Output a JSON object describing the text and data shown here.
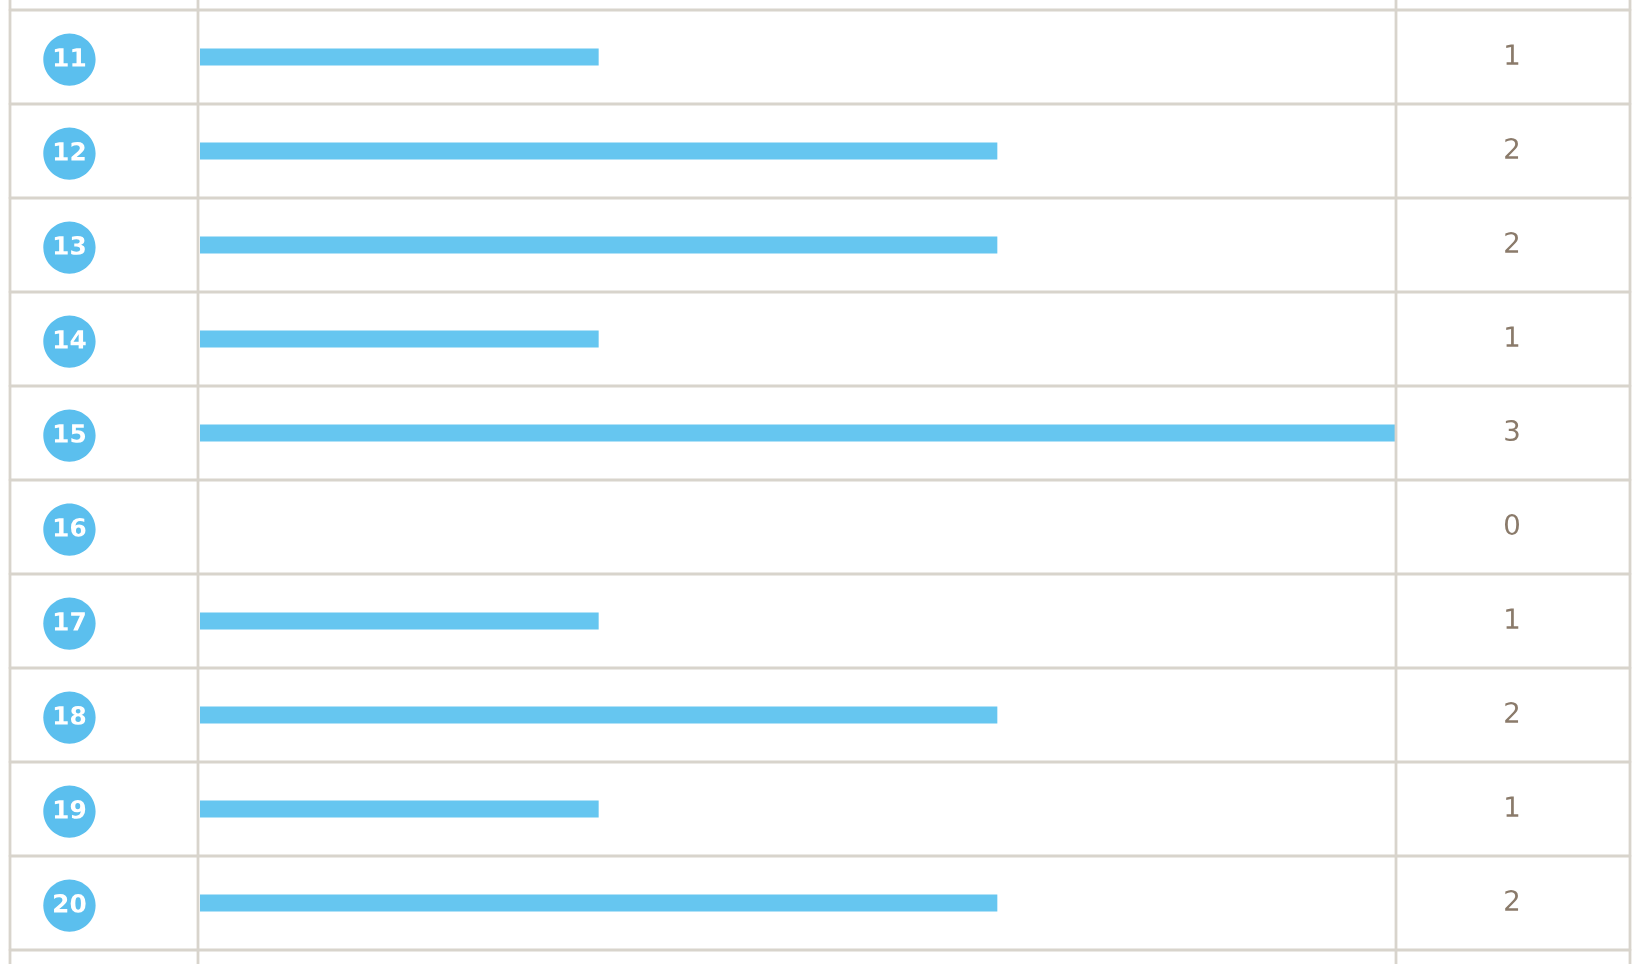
{
  "chart_data": {
    "type": "bar",
    "orientation": "horizontal",
    "categories": [
      "11",
      "12",
      "13",
      "14",
      "15",
      "16",
      "17",
      "18",
      "19",
      "20"
    ],
    "values": [
      1,
      2,
      2,
      1,
      3,
      0,
      1,
      2,
      1,
      2
    ],
    "color": "#66c6f0",
    "data_labels": true,
    "grid": false,
    "legend": false
  }
}
